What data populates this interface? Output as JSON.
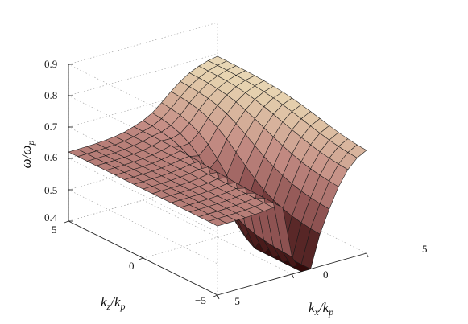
{
  "chart_data": {
    "type": "surface",
    "xlabel": "k_x/k_p",
    "ylabel": "k_z/k_p",
    "zlabel": "ω/ω_p",
    "xlim": [
      -5,
      5
    ],
    "ylim": [
      -5,
      5
    ],
    "zlim": [
      0.4,
      0.9
    ],
    "x_ticks": [
      "−5",
      "0",
      "5"
    ],
    "y_ticks": [
      "−5",
      "0",
      "5"
    ],
    "z_ticks": [
      "0.4",
      "0.5",
      "0.6",
      "0.7",
      "0.8",
      "0.9"
    ],
    "grid": true,
    "colormap": "pink",
    "grid_points_per_axis": 17,
    "surface_description": "Upper branch ≈0.63 near the k_z axis, rising toward ≈0.80 for large |k_x|; lower branch drops toward ≈0.40 near k_x≈0, with a fold/discontinuity along k_x=0",
    "sample_values": [
      {
        "kx": 0,
        "kz": 0,
        "w": 0.63
      },
      {
        "kx": 5,
        "kz": 0,
        "w": 0.8
      },
      {
        "kx": -5,
        "kz": 5,
        "w": 0.63
      },
      {
        "kx": 0.5,
        "kz": -5,
        "w": 0.4
      },
      {
        "kx": 5,
        "kz": -5,
        "w": 0.66
      }
    ]
  }
}
